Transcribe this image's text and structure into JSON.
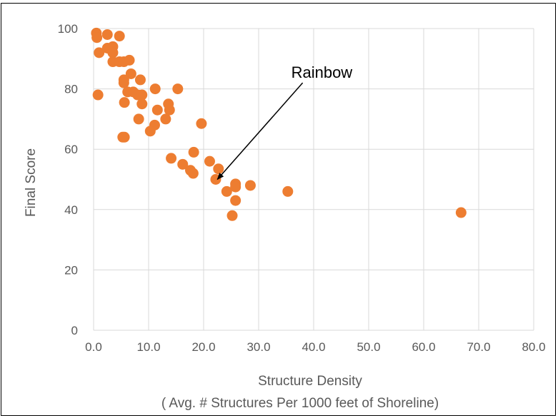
{
  "chart_data": {
    "type": "scatter",
    "title": "",
    "xlabel": "Structure Density",
    "xlabel_sub": "( Avg. # Structures Per 1000 feet of Shoreline)",
    "ylabel": "Final Score",
    "xlim": [
      0,
      80
    ],
    "ylim": [
      0,
      100
    ],
    "x_ticks": [
      "0.0",
      "10.0",
      "20.0",
      "30.0",
      "40.0",
      "50.0",
      "60.0",
      "70.0",
      "80.0"
    ],
    "y_ticks": [
      "0",
      "20",
      "40",
      "60",
      "80",
      "100"
    ],
    "grid": true,
    "legend": "none",
    "marker_color": "#ED7D31",
    "points": [
      {
        "x": 0.5,
        "y": 98.5
      },
      {
        "x": 0.6,
        "y": 97
      },
      {
        "x": 2.5,
        "y": 98
      },
      {
        "x": 4.7,
        "y": 97.5
      },
      {
        "x": 1.0,
        "y": 92
      },
      {
        "x": 2.5,
        "y": 93.5
      },
      {
        "x": 3.5,
        "y": 94
      },
      {
        "x": 3.5,
        "y": 92
      },
      {
        "x": 3.5,
        "y": 89
      },
      {
        "x": 4.7,
        "y": 89
      },
      {
        "x": 5.5,
        "y": 89
      },
      {
        "x": 6.5,
        "y": 89.5
      },
      {
        "x": 6.8,
        "y": 85
      },
      {
        "x": 5.5,
        "y": 83
      },
      {
        "x": 5.5,
        "y": 82
      },
      {
        "x": 8.5,
        "y": 83
      },
      {
        "x": 6.2,
        "y": 79
      },
      {
        "x": 7.2,
        "y": 79
      },
      {
        "x": 8.0,
        "y": 78
      },
      {
        "x": 8.8,
        "y": 78
      },
      {
        "x": 0.8,
        "y": 78
      },
      {
        "x": 11.2,
        "y": 80
      },
      {
        "x": 15.3,
        "y": 80
      },
      {
        "x": 5.6,
        "y": 75.5
      },
      {
        "x": 8.8,
        "y": 75
      },
      {
        "x": 13.6,
        "y": 75
      },
      {
        "x": 11.6,
        "y": 73
      },
      {
        "x": 13.8,
        "y": 73
      },
      {
        "x": 8.2,
        "y": 70
      },
      {
        "x": 13.1,
        "y": 70
      },
      {
        "x": 11.1,
        "y": 68
      },
      {
        "x": 10.3,
        "y": 66
      },
      {
        "x": 19.6,
        "y": 68.5
      },
      {
        "x": 5.3,
        "y": 64
      },
      {
        "x": 5.6,
        "y": 64
      },
      {
        "x": 14.1,
        "y": 57
      },
      {
        "x": 18.2,
        "y": 59
      },
      {
        "x": 21.1,
        "y": 56
      },
      {
        "x": 16.2,
        "y": 55
      },
      {
        "x": 17.6,
        "y": 53
      },
      {
        "x": 18.1,
        "y": 52
      },
      {
        "x": 22.7,
        "y": 53.5
      },
      {
        "x": 22.2,
        "y": 50
      },
      {
        "x": 25.8,
        "y": 48.5
      },
      {
        "x": 25.8,
        "y": 47.5
      },
      {
        "x": 24.2,
        "y": 46
      },
      {
        "x": 28.5,
        "y": 48
      },
      {
        "x": 35.3,
        "y": 46
      },
      {
        "x": 25.8,
        "y": 43
      },
      {
        "x": 25.2,
        "y": 38
      },
      {
        "x": 66.8,
        "y": 39
      }
    ],
    "annotations": [
      {
        "text": "Rainbow",
        "arrow_from": {
          "x": 38.0,
          "y": 82.0
        },
        "arrow_to": {
          "x": 22.5,
          "y": 50.0
        }
      }
    ]
  }
}
